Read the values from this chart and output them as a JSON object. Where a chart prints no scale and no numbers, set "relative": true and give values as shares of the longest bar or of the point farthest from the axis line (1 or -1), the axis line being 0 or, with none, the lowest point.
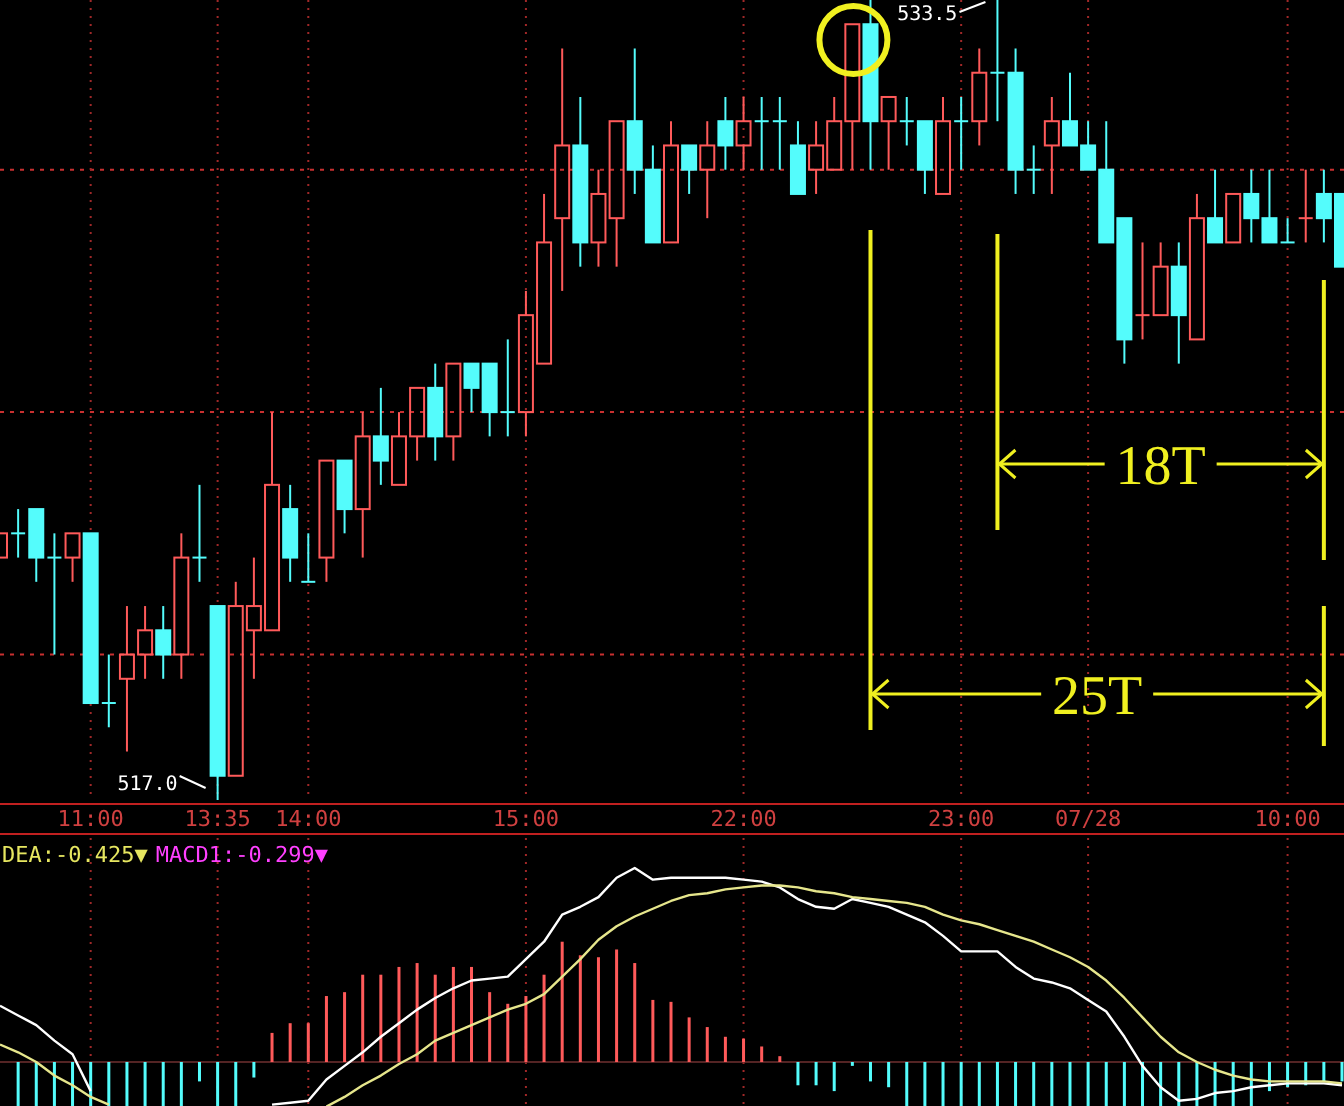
{
  "chart_data": [
    {
      "type": "candlestick",
      "categories": [
        null,
        null,
        null,
        null,
        null,
        "11:00",
        null,
        null,
        null,
        null,
        null,
        null,
        "13:35",
        null,
        null,
        null,
        null,
        "14:00",
        null,
        null,
        null,
        null,
        null,
        null,
        null,
        null,
        null,
        null,
        null,
        "15:00",
        null,
        null,
        null,
        null,
        null,
        null,
        null,
        null,
        null,
        null,
        null,
        "22:00",
        null,
        null,
        null,
        null,
        null,
        null,
        null,
        null,
        null,
        null,
        null,
        "23:00",
        null,
        null,
        null,
        null,
        null,
        null,
        "07/28",
        null,
        null,
        null,
        null,
        null,
        null,
        null,
        null,
        null,
        null,
        "10:00",
        null,
        null,
        null
      ],
      "ohlc": [
        [
          522.0,
          522.5,
          522.0,
          522.5
        ],
        [
          522.5,
          523.0,
          522.0,
          522.5
        ],
        [
          523.0,
          523.0,
          521.5,
          522.0
        ],
        [
          522.0,
          522.5,
          520.0,
          522.0
        ],
        [
          522.0,
          522.5,
          521.5,
          522.5
        ],
        [
          522.5,
          522.5,
          519.0,
          519.0
        ],
        [
          519.0,
          520.0,
          518.5,
          519.0
        ],
        [
          519.5,
          521.0,
          518.0,
          520.0
        ],
        [
          520.0,
          521.0,
          519.5,
          520.5
        ],
        [
          520.5,
          521.0,
          519.5,
          520.0
        ],
        [
          520.0,
          522.5,
          519.5,
          522.0
        ],
        [
          522.0,
          523.5,
          521.5,
          522.0
        ],
        [
          521.0,
          521.0,
          517.0,
          517.5
        ],
        [
          517.5,
          521.5,
          517.5,
          521.0
        ],
        [
          520.5,
          522.0,
          519.5,
          521.0
        ],
        [
          520.5,
          525.0,
          520.5,
          523.5
        ],
        [
          523.0,
          523.5,
          521.5,
          522.0
        ],
        [
          521.5,
          522.5,
          521.5,
          521.5
        ],
        [
          522.0,
          524.0,
          521.5,
          524.0
        ],
        [
          524.0,
          524.0,
          522.5,
          523.0
        ],
        [
          523.0,
          525.0,
          522.0,
          524.5
        ],
        [
          524.5,
          525.5,
          523.5,
          524.0
        ],
        [
          523.5,
          525.0,
          523.5,
          524.5
        ],
        [
          524.5,
          525.5,
          524.0,
          525.5
        ],
        [
          525.5,
          526.0,
          524.0,
          524.5
        ],
        [
          524.5,
          526.0,
          524.0,
          526.0
        ],
        [
          526.0,
          526.0,
          525.0,
          525.5
        ],
        [
          526.0,
          526.0,
          524.5,
          525.0
        ],
        [
          525.0,
          526.5,
          524.5,
          525.0
        ],
        [
          525.0,
          527.5,
          524.5,
          527.0
        ],
        [
          526.0,
          529.5,
          526.0,
          528.5
        ],
        [
          529.0,
          532.5,
          527.5,
          530.5
        ],
        [
          530.5,
          531.5,
          528.0,
          528.5
        ],
        [
          528.5,
          530.0,
          528.0,
          529.5
        ],
        [
          529.0,
          531.0,
          528.0,
          531.0
        ],
        [
          531.0,
          532.5,
          529.5,
          530.0
        ],
        [
          530.0,
          530.5,
          528.5,
          528.5
        ],
        [
          528.5,
          531.0,
          528.5,
          530.5
        ],
        [
          530.5,
          530.5,
          529.5,
          530.0
        ],
        [
          530.0,
          531.0,
          529.0,
          530.5
        ],
        [
          531.0,
          531.5,
          530.0,
          530.5
        ],
        [
          530.5,
          531.5,
          530.0,
          531.0
        ],
        [
          531.0,
          531.5,
          530.0,
          531.0
        ],
        [
          531.0,
          531.5,
          530.0,
          531.0
        ],
        [
          530.5,
          531.0,
          529.5,
          529.5
        ],
        [
          530.0,
          531.0,
          529.5,
          530.5
        ],
        [
          530.0,
          531.5,
          530.0,
          531.0
        ],
        [
          531.0,
          533.0,
          530.0,
          533.0
        ],
        [
          533.0,
          533.5,
          530.0,
          531.0
        ],
        [
          531.0,
          531.5,
          530.0,
          531.5
        ],
        [
          531.0,
          531.5,
          530.5,
          531.0
        ],
        [
          531.0,
          531.0,
          529.5,
          530.0
        ],
        [
          529.5,
          531.5,
          529.5,
          531.0
        ],
        [
          531.0,
          531.5,
          530.0,
          531.0
        ],
        [
          531.0,
          532.5,
          530.5,
          532.0
        ],
        [
          532.0,
          533.5,
          531.0,
          532.0
        ],
        [
          532.0,
          532.5,
          529.5,
          530.0
        ],
        [
          530.0,
          530.5,
          529.5,
          530.0
        ],
        [
          530.5,
          531.5,
          529.5,
          531.0
        ],
        [
          531.0,
          532.0,
          530.5,
          530.5
        ],
        [
          530.5,
          531.0,
          530.0,
          530.0
        ],
        [
          530.0,
          531.0,
          528.5,
          528.5
        ],
        [
          529.0,
          529.0,
          526.0,
          526.5
        ],
        [
          527.0,
          528.5,
          526.5,
          527.0
        ],
        [
          527.0,
          528.5,
          527.0,
          528.0
        ],
        [
          528.0,
          528.5,
          526.0,
          527.0
        ],
        [
          526.5,
          529.5,
          526.5,
          529.0
        ],
        [
          529.0,
          530.0,
          528.5,
          528.5
        ],
        [
          528.5,
          529.5,
          528.5,
          529.5
        ],
        [
          529.5,
          530.0,
          528.5,
          529.0
        ],
        [
          529.0,
          530.0,
          528.5,
          528.5
        ],
        [
          528.5,
          529.0,
          528.5,
          528.5
        ],
        [
          529.0,
          530.0,
          528.5,
          529.0
        ],
        [
          529.5,
          530.0,
          528.5,
          529.0
        ],
        [
          529.5,
          529.5,
          528.0,
          528.0
        ]
      ],
      "colors": [
        "#ff5a5a",
        "#54fcfc",
        "#54fcfc",
        "#54fcfc",
        "#ff5a5a",
        "#54fcfc",
        "#54fcfc",
        "#ff5a5a",
        "#ff5a5a",
        "#54fcfc",
        "#ff5a5a",
        "#54fcfc",
        "#54fcfc",
        "#ff5a5a",
        "#ff5a5a",
        "#ff5a5a",
        "#54fcfc",
        "#54fcfc",
        "#ff5a5a",
        "#54fcfc",
        "#ff5a5a",
        "#54fcfc",
        "#ff5a5a",
        "#ff5a5a",
        "#54fcfc",
        "#ff5a5a",
        "#54fcfc",
        "#54fcfc",
        "#54fcfc",
        "#ff5a5a",
        "#ff5a5a",
        "#ff5a5a",
        "#54fcfc",
        "#ff5a5a",
        "#ff5a5a",
        "#54fcfc",
        "#54fcfc",
        "#ff5a5a",
        "#54fcfc",
        "#ff5a5a",
        "#54fcfc",
        "#ff5a5a",
        "#54fcfc",
        "#54fcfc",
        "#54fcfc",
        "#ff5a5a",
        "#ff5a5a",
        "#ff5a5a",
        "#54fcfc",
        "#ff5a5a",
        "#54fcfc",
        "#54fcfc",
        "#ff5a5a",
        "#54fcfc",
        "#ff5a5a",
        "#54fcfc",
        "#54fcfc",
        "#54fcfc",
        "#ff5a5a",
        "#54fcfc",
        "#54fcfc",
        "#54fcfc",
        "#54fcfc",
        "#ff5a5a",
        "#ff5a5a",
        "#54fcfc",
        "#ff5a5a",
        "#54fcfc",
        "#ff5a5a",
        "#54fcfc",
        "#54fcfc",
        "#54fcfc",
        "#ff5a5a",
        "#54fcfc",
        "#54fcfc"
      ],
      "yticks": [
        {
          "value": 520,
          "label": null
        },
        {
          "value": 525,
          "label": null
        },
        {
          "value": 530,
          "label": null
        }
      ],
      "grid": true,
      "tick_labels": "x",
      "annotations": [
        "517.0",
        "533.5",
        "18T",
        "25T"
      ]
    },
    {
      "type": "bar",
      "relative": true,
      "grid": "x",
      "tick_labels": false,
      "ref_lines": [
        {
          "axis": "y",
          "value": 0,
          "color": "#703030"
        }
      ],
      "annotations": [
        "DEA:-0.425▼",
        "MACD1:-0.299▼"
      ],
      "series": [
        {
          "type": "bar",
          "color": "#ff5a5a",
          "values": [
            null,
            null,
            null,
            null,
            null,
            null,
            null,
            null,
            null,
            null,
            null,
            null,
            null,
            null,
            null,
            0.15,
            0.2,
            0.2,
            0.34,
            0.36,
            0.45,
            0.45,
            0.49,
            0.51,
            0.45,
            0.49,
            0.49,
            0.36,
            0.3,
            0.34,
            0.45,
            0.62,
            0.55,
            0.54,
            0.58,
            0.51,
            0.32,
            0.31,
            0.23,
            0.18,
            0.13,
            0.12,
            0.08,
            0.03,
            null,
            null,
            null,
            null,
            null,
            null,
            null,
            null,
            null,
            null,
            null,
            null,
            null,
            null,
            null,
            null,
            null,
            null,
            null,
            null,
            null,
            null,
            null,
            null,
            null,
            null,
            null,
            null,
            null,
            null,
            null
          ]
        },
        {
          "type": "bar",
          "color": "#54fcfc",
          "values": [
            null,
            -0.23,
            -0.23,
            -0.23,
            -0.23,
            -0.23,
            -0.23,
            -0.23,
            -0.23,
            -0.23,
            -0.23,
            -0.1,
            -0.23,
            -0.23,
            -0.08,
            null,
            null,
            null,
            null,
            null,
            null,
            null,
            null,
            null,
            null,
            null,
            null,
            null,
            null,
            null,
            null,
            null,
            null,
            null,
            null,
            null,
            null,
            null,
            null,
            null,
            null,
            null,
            null,
            null,
            -0.12,
            -0.12,
            -0.15,
            -0.02,
            -0.1,
            -0.13,
            -0.23,
            -0.23,
            -0.23,
            -0.23,
            -0.23,
            -0.23,
            -0.23,
            -0.23,
            -0.23,
            -0.23,
            -0.23,
            -0.23,
            -0.23,
            -0.23,
            -0.23,
            -0.23,
            -0.23,
            -0.23,
            -0.23,
            -0.23,
            -0.15,
            -0.13,
            -0.12,
            -0.1,
            -0.1
          ]
        },
        {
          "type": "line",
          "color": "#ffffff",
          "values": [
            0.29,
            0.24,
            0.19,
            0.11,
            0.04,
            -0.15,
            null,
            null,
            null,
            null,
            null,
            null,
            null,
            null,
            null,
            -0.22,
            -0.21,
            -0.2,
            -0.09,
            -0.02,
            0.05,
            0.13,
            0.2,
            0.27,
            0.33,
            0.38,
            0.42,
            0.43,
            0.44,
            0.53,
            0.62,
            0.76,
            0.8,
            0.85,
            0.95,
            1.0,
            0.94,
            0.95,
            0.95,
            0.95,
            0.95,
            0.94,
            0.93,
            0.9,
            0.84,
            0.8,
            0.79,
            0.84,
            0.82,
            0.8,
            0.76,
            0.72,
            0.65,
            0.57,
            0.57,
            0.57,
            0.49,
            0.43,
            0.41,
            0.38,
            0.32,
            0.26,
            0.13,
            -0.02,
            -0.13,
            -0.2,
            -0.19,
            -0.16,
            -0.15,
            -0.13,
            -0.12,
            -0.11,
            -0.11,
            -0.11,
            -0.12
          ]
        },
        {
          "type": "line",
          "color": "#e6e68c",
          "values": [
            0.09,
            0.05,
            0.0,
            -0.07,
            -0.12,
            -0.18,
            -0.22,
            null,
            null,
            null,
            null,
            null,
            null,
            null,
            null,
            null,
            null,
            null,
            -0.23,
            -0.18,
            -0.12,
            -0.07,
            -0.01,
            0.04,
            0.11,
            0.15,
            0.19,
            0.23,
            0.27,
            0.3,
            0.35,
            0.44,
            0.53,
            0.63,
            0.7,
            0.75,
            0.79,
            0.83,
            0.86,
            0.87,
            0.89,
            0.9,
            0.91,
            0.91,
            0.9,
            0.88,
            0.87,
            0.85,
            0.84,
            0.83,
            0.82,
            0.8,
            0.76,
            0.73,
            0.71,
            0.68,
            0.65,
            0.62,
            0.58,
            0.54,
            0.49,
            0.42,
            0.33,
            0.23,
            0.13,
            0.05,
            0.0,
            -0.04,
            -0.07,
            -0.09,
            -0.1,
            -0.1,
            -0.1,
            -0.1,
            -0.11
          ]
        }
      ]
    }
  ]
}
